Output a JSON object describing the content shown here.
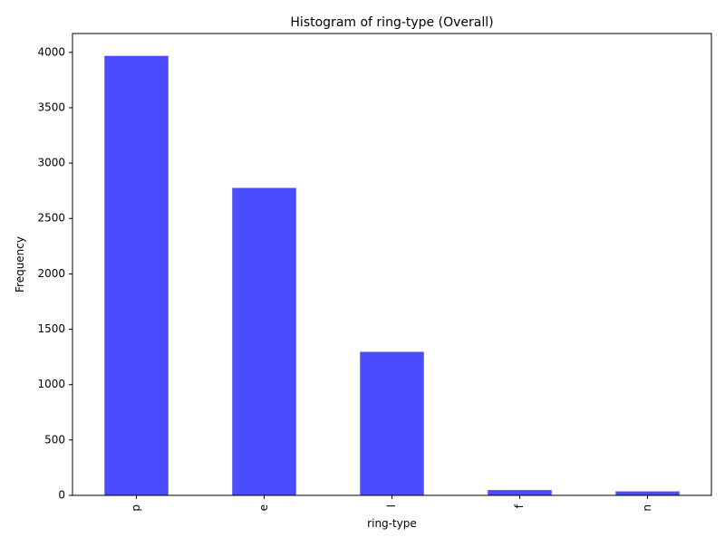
{
  "chart_data": {
    "type": "bar",
    "title": "Histogram of ring-type (Overall)",
    "xlabel": "ring-type",
    "ylabel": "Frequency",
    "categories": [
      "p",
      "e",
      "l",
      "f",
      "n"
    ],
    "values": [
      3968,
      2776,
      1296,
      48,
      36
    ],
    "ylim": [
      0,
      4170
    ],
    "yticks": [
      0,
      500,
      1000,
      1500,
      2000,
      2500,
      3000,
      3500,
      4000
    ],
    "bar_color": "#4c4cff",
    "grid": false,
    "legend": "none"
  }
}
